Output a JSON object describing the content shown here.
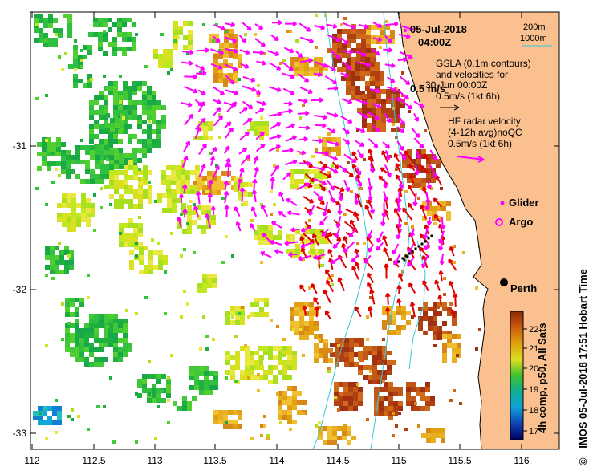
{
  "title": {
    "date": "05-Jul-2018",
    "time": "04:00Z"
  },
  "contour_legend": {
    "line1": "200m",
    "line2": "1000m",
    "color": "#33c8d8"
  },
  "gsla_legend": {
    "line1": "GSLA (0.1m contours)",
    "line2": "and velocities for",
    "line3": "30-Jun 00:00Z",
    "scale_label": "0.5m/s (1kt 6h)",
    "overlay_label": "0.5 m/s"
  },
  "hf_legend": {
    "line1": "HF radar velocity",
    "line2": "(4-12h avg)noQC",
    "scale_label": "0.5m/s (1kt 6h)",
    "color": "#ff00ff"
  },
  "markers": {
    "glider_label": "Glider",
    "argo_label": "Argo",
    "color": "#ff00ff"
  },
  "city": {
    "name": "Perth"
  },
  "colorbar": {
    "ticks": [
      "22",
      "21",
      "20",
      "19",
      "18",
      "17"
    ],
    "label": "4h comp, p50, All Sats",
    "colors": [
      "#b03a10",
      "#d87810",
      "#e0c020",
      "#a8e020",
      "#20b040",
      "#10a8a8",
      "#1060d0",
      "#000080"
    ]
  },
  "axes": {
    "x_ticks": [
      "112",
      "112.5",
      "113",
      "113.5",
      "114",
      "114.5",
      "115",
      "115.5",
      "116"
    ],
    "y_ticks": [
      "-31",
      "-32",
      "-33"
    ]
  },
  "colors": {
    "land": "#fbc090",
    "red_arrow": "#e00000",
    "magenta_arrow": "#ff00ff"
  },
  "credit": {
    "symbol": "©",
    "text": "IMOS 05-Jul-2018 17:51 Hobart Time"
  }
}
